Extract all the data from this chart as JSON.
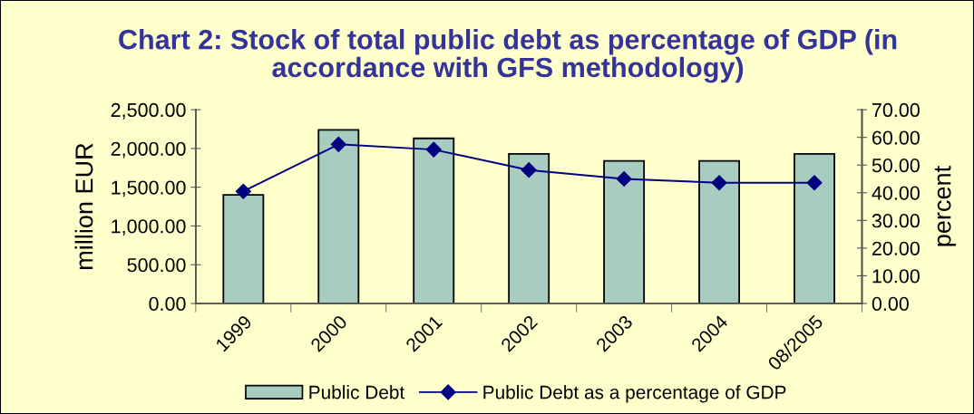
{
  "chart_data": {
    "type": "bar",
    "title": "Chart 2: Stock of total public debt as percentage of GDP (in accordance with GFS methodology)",
    "ylabel": "million EUR",
    "y2label": "percent",
    "categories": [
      "1999",
      "2000",
      "2001",
      "2002",
      "2003",
      "2004",
      "08/2005"
    ],
    "series": [
      {
        "name": "Public Debt",
        "color": "#a8cdc0",
        "values": [
          1400,
          2240,
          2130,
          1930,
          1840,
          1840,
          1930
        ]
      },
      {
        "name": "Public Debt as a percentage of GDP",
        "type": "line",
        "axis": "y2",
        "color": "#000080",
        "values": [
          40.5,
          57.5,
          55.6,
          48.2,
          45.0,
          43.6,
          43.6
        ]
      }
    ],
    "ylim": [
      0,
      2500
    ],
    "yticks": [
      {
        "value": 0,
        "label": "0.00"
      },
      {
        "value": 500,
        "label": "500.00"
      },
      {
        "value": 1000,
        "label": "1,000.00"
      },
      {
        "value": 1500,
        "label": "1,500.00"
      },
      {
        "value": 2000,
        "label": "2,000.00"
      },
      {
        "value": 2500,
        "label": "2,500.00"
      }
    ],
    "y2lim": [
      0,
      70
    ],
    "y2ticks": [
      {
        "value": 0,
        "label": "0.00"
      },
      {
        "value": 10,
        "label": "10.00"
      },
      {
        "value": 20,
        "label": "20.00"
      },
      {
        "value": 30,
        "label": "30.00"
      },
      {
        "value": 40,
        "label": "40.00"
      },
      {
        "value": 50,
        "label": "50.00"
      },
      {
        "value": 60,
        "label": "60.00"
      },
      {
        "value": 70,
        "label": "70.00"
      }
    ],
    "marker": "diamond",
    "grid": false,
    "legend": "bottom"
  }
}
